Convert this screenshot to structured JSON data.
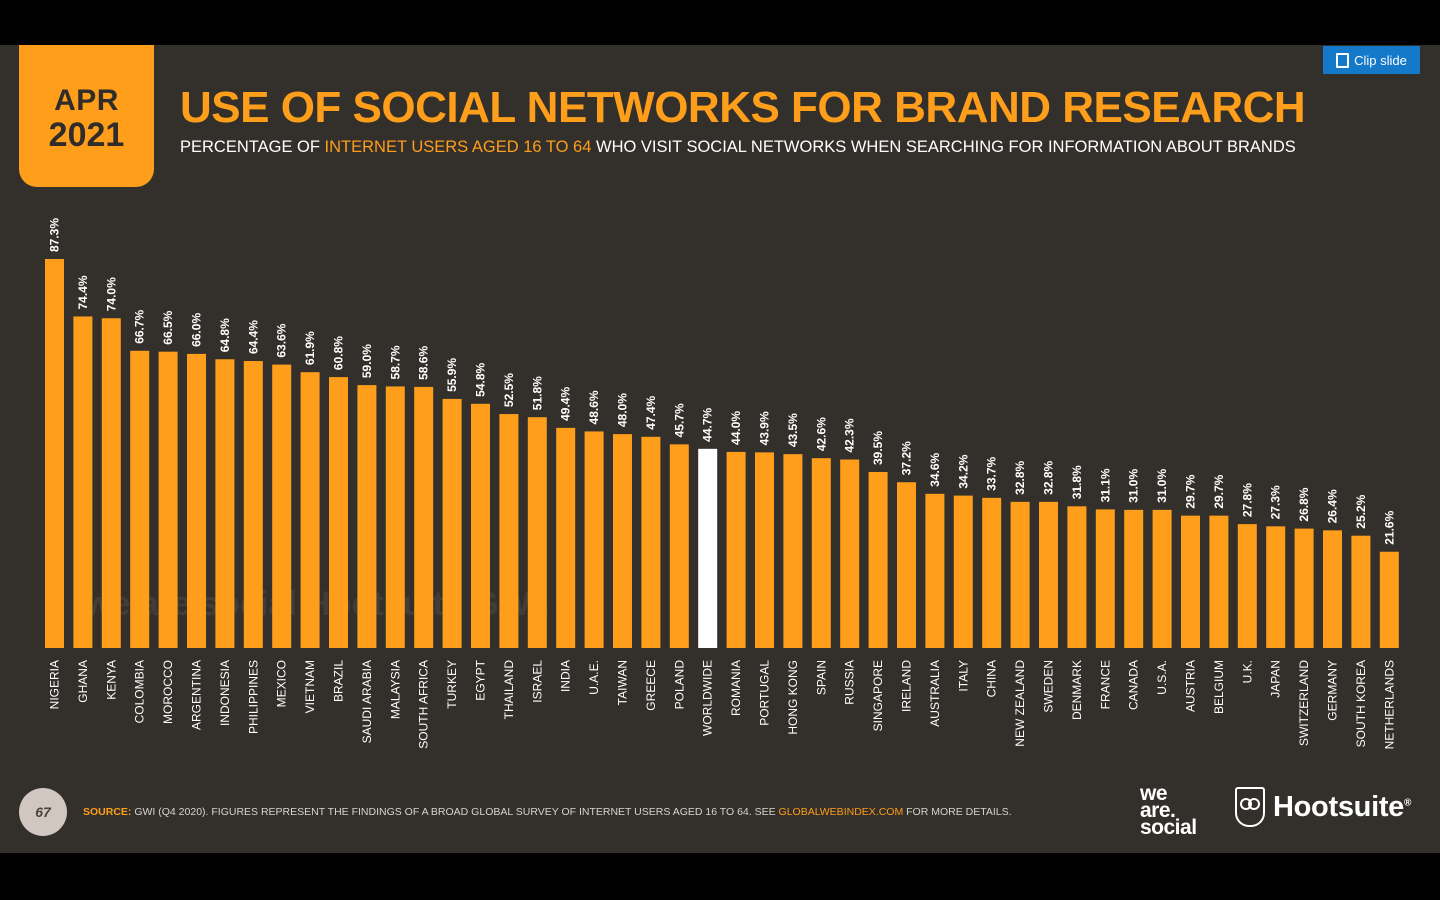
{
  "header": {
    "month": "APR",
    "year": "2021",
    "title": "USE OF SOCIAL NETWORKS FOR BRAND RESEARCH",
    "subtitle_pre": "PERCENTAGE OF ",
    "subtitle_highlight": "INTERNET USERS AGED 16 TO 64",
    "subtitle_post": " WHO VISIT SOCIAL NETWORKS WHEN SEARCHING FOR INFORMATION ABOUT BRANDS"
  },
  "clip_button": {
    "label": "Clip slide",
    "icon": "clip-icon"
  },
  "watermark": "we are social  Hootsuite  GWI.",
  "footer": {
    "page_number": "67",
    "source_label": "SOURCE:",
    "source_text": " GWI (Q4 2020). FIGURES REPRESENT THE FINDINGS OF A BROAD GLOBAL SURVEY OF INTERNET USERS AGED 16 TO 64. SEE ",
    "source_link": "GLOBALWEBINDEX.COM",
    "source_tail": " FOR MORE DETAILS.",
    "logo_was_1": "we",
    "logo_was_2": "are.",
    "logo_was_3": "social",
    "logo_hootsuite": "Hootsuite",
    "logo_hootsuite_mark": "®"
  },
  "colors": {
    "background": "#33302c",
    "accent": "#ff9e1b",
    "highlight_bar": "#ffffff",
    "text": "#ffffff"
  },
  "chart_data": {
    "type": "bar",
    "categories": [
      "NIGERIA",
      "GHANA",
      "KENYA",
      "COLOMBIA",
      "MOROCCO",
      "ARGENTINA",
      "INDONESIA",
      "PHILIPPINES",
      "MEXICO",
      "VIETNAM",
      "BRAZIL",
      "SAUDI ARABIA",
      "MALAYSIA",
      "SOUTH AFRICA",
      "TURKEY",
      "EGYPT",
      "THAILAND",
      "ISRAEL",
      "INDIA",
      "U.A.E.",
      "TAIWAN",
      "GREECE",
      "POLAND",
      "WORLDWIDE",
      "ROMANIA",
      "PORTUGAL",
      "HONG KONG",
      "SPAIN",
      "RUSSIA",
      "SINGAPORE",
      "IRELAND",
      "AUSTRALIA",
      "ITALY",
      "CHINA",
      "NEW ZEALAND",
      "SWEDEN",
      "DENMARK",
      "FRANCE",
      "CANADA",
      "U.S.A.",
      "AUSTRIA",
      "BELGIUM",
      "U.K.",
      "JAPAN",
      "SWITZERLAND",
      "GERMANY",
      "SOUTH KOREA",
      "NETHERLANDS"
    ],
    "values": [
      87.3,
      74.4,
      74.0,
      66.7,
      66.5,
      66.0,
      64.8,
      64.4,
      63.6,
      61.9,
      60.8,
      59.0,
      58.7,
      58.6,
      55.9,
      54.8,
      52.5,
      51.8,
      49.4,
      48.6,
      48.0,
      47.4,
      45.7,
      44.7,
      44.0,
      43.9,
      43.5,
      42.6,
      42.3,
      39.5,
      37.2,
      34.6,
      34.2,
      33.7,
      32.8,
      32.8,
      31.8,
      31.1,
      31.0,
      31.0,
      29.7,
      29.7,
      27.8,
      27.3,
      26.8,
      26.4,
      25.2,
      21.6
    ],
    "value_labels": [
      "87.3%",
      "74.4%",
      "74.0%",
      "66.7%",
      "66.5%",
      "66.0%",
      "64.8%",
      "64.4%",
      "63.6%",
      "61.9%",
      "60.8%",
      "59.0%",
      "58.7%",
      "58.6%",
      "55.9%",
      "54.8%",
      "52.5%",
      "51.8%",
      "49.4%",
      "48.6%",
      "48.0%",
      "47.4%",
      "45.7%",
      "44.7%",
      "44.0%",
      "43.9%",
      "43.5%",
      "42.6%",
      "42.3%",
      "39.5%",
      "37.2%",
      "34.6%",
      "34.2%",
      "33.7%",
      "32.8%",
      "32.8%",
      "31.8%",
      "31.1%",
      "31.0%",
      "31.0%",
      "29.7%",
      "29.7%",
      "27.8%",
      "27.3%",
      "26.8%",
      "26.4%",
      "25.2%",
      "21.6%"
    ],
    "highlight_category": "WORLDWIDE",
    "ylim": [
      0,
      87.3
    ],
    "grid": false,
    "legend": "none"
  }
}
